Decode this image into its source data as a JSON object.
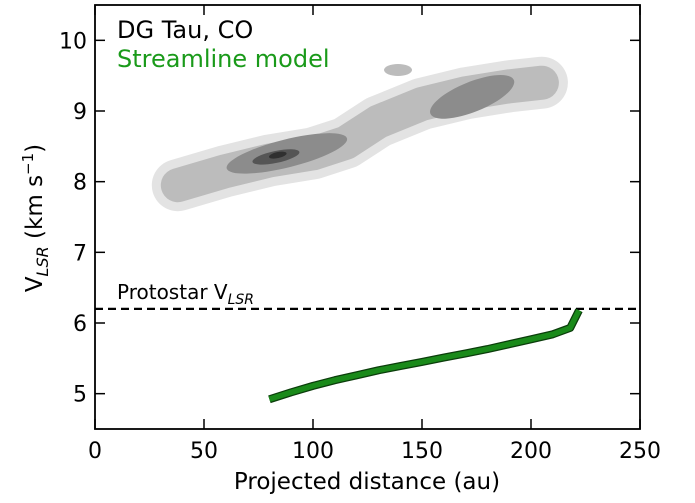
{
  "chart_data": {
    "type": "line",
    "xlabel": "Projected distance (au)",
    "ylabel": {
      "main": "V",
      "sub": "LSR",
      "units_pre": " (km s",
      "units_sup": "−1",
      "units_post": ")"
    },
    "xlim": [
      0,
      250
    ],
    "ylim": [
      4.5,
      10.5
    ],
    "xticks": [
      0,
      50,
      100,
      150,
      200,
      250
    ],
    "yticks": [
      5,
      6,
      7,
      8,
      9,
      10
    ],
    "legend": [
      {
        "text": "DG Tau, CO",
        "color": "#000000"
      },
      {
        "text": "Streamline model",
        "color": "#1a9a1a"
      }
    ],
    "reference_line": {
      "y": 6.2,
      "style": "dashed",
      "label_main": "Protostar V",
      "label_sub": "LSR"
    },
    "series": [
      {
        "name": "Streamline model",
        "color": "#1a8a1a",
        "x": [
          80,
          90,
          100,
          110,
          120,
          130,
          140,
          150,
          160,
          170,
          180,
          190,
          200,
          210,
          218,
          222
        ],
        "y": [
          4.92,
          5.02,
          5.11,
          5.19,
          5.26,
          5.33,
          5.39,
          5.45,
          5.51,
          5.57,
          5.63,
          5.7,
          5.77,
          5.84,
          5.93,
          6.18
        ]
      }
    ],
    "contours": {
      "description_levels": [
        "#e3e3e3",
        "#bcbcbc",
        "#8c8c8c",
        "#555555",
        "#303030"
      ],
      "ridge": [
        {
          "x": 38,
          "y": 7.95
        },
        {
          "x": 60,
          "y": 8.15
        },
        {
          "x": 80,
          "y": 8.3
        },
        {
          "x": 100,
          "y": 8.4
        },
        {
          "x": 115,
          "y": 8.55
        },
        {
          "x": 130,
          "y": 8.85
        },
        {
          "x": 150,
          "y": 9.1
        },
        {
          "x": 170,
          "y": 9.25
        },
        {
          "x": 190,
          "y": 9.35
        },
        {
          "x": 205,
          "y": 9.4
        }
      ],
      "peaks": [
        {
          "x": 83,
          "y": 8.35
        },
        {
          "x": 173,
          "y": 9.2
        }
      ]
    }
  }
}
